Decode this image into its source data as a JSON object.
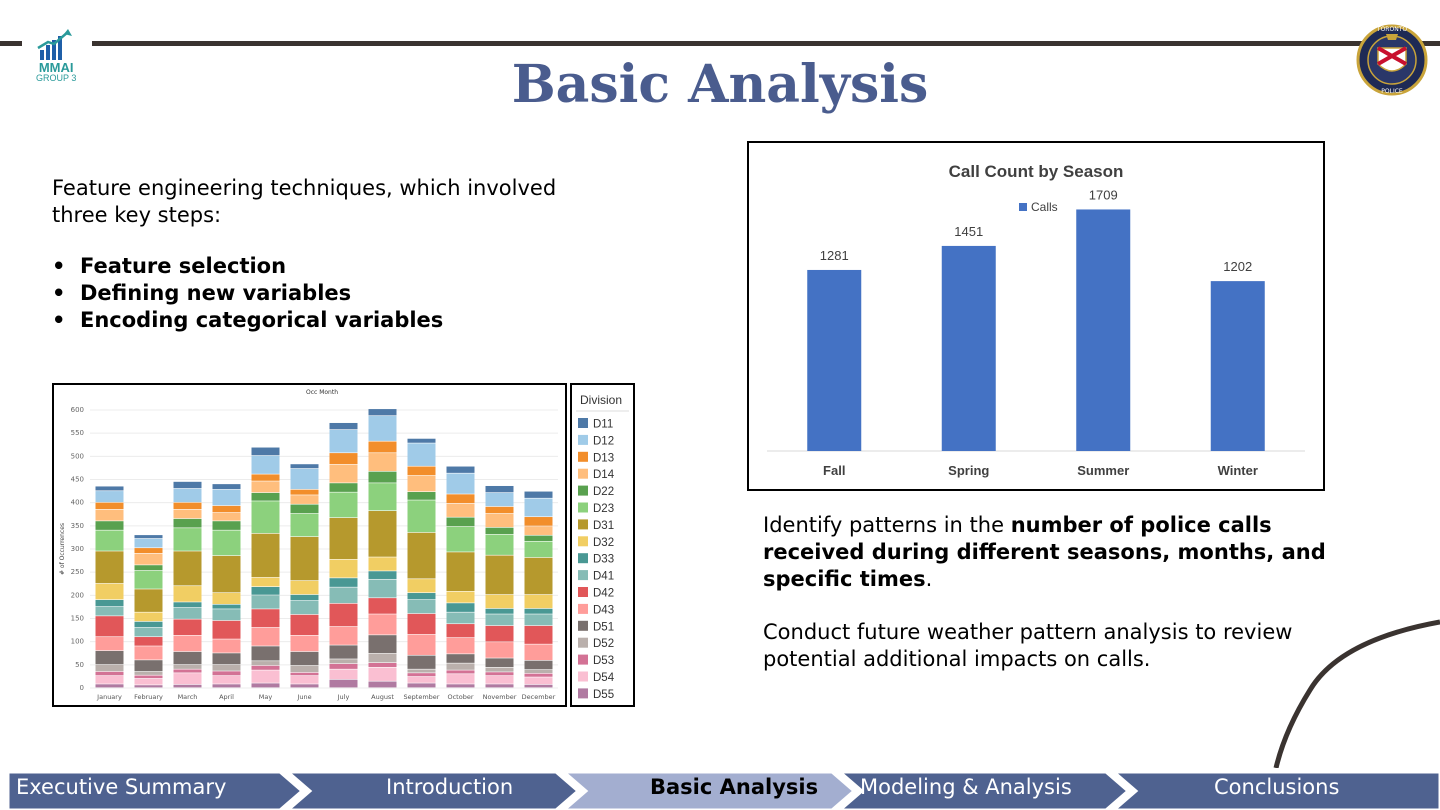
{
  "slide": {
    "title": "Basic Analysis",
    "logo_left": {
      "line1": "MMAI",
      "line2": "GROUP 3",
      "icon": "growth-chart-icon"
    },
    "logo_right": {
      "icon": "toronto-police-crest-icon",
      "line1": "TORONTO",
      "line2": "POLICE"
    }
  },
  "left": {
    "intro": "Feature engineering techniques, which involved three key steps:",
    "bullets": [
      "Feature selection",
      "Defining new variables",
      "Encoding categorical variables"
    ]
  },
  "right": {
    "para1_pre": "Identify patterns in the ",
    "para1_bold": "number of police calls received during different seasons, months, and specific times",
    "para1_post": ".",
    "para2": "Conduct future weather pattern analysis to review potential additional impacts on calls."
  },
  "nav": {
    "items": [
      "Executive Summary",
      "Introduction",
      "Basic Analysis",
      "Modeling & Analysis",
      "Conclusions"
    ],
    "active": "Basic Analysis",
    "colors": {
      "inactive": "#4f6290",
      "active": "#a3aed0"
    }
  },
  "chart_data": [
    {
      "type": "bar",
      "title": "Call Count by Season",
      "categories": [
        "Fall",
        "Spring",
        "Summer",
        "Winter"
      ],
      "series": [
        {
          "name": "Calls",
          "values": [
            1281,
            1451,
            1709,
            1202
          ]
        }
      ],
      "data_labels": true,
      "legend": "top",
      "grid": false,
      "bar_color": "#4472c4"
    },
    {
      "type": "bar",
      "stacked": true,
      "title": "Occ Month",
      "ylabel": "# of Occurrences",
      "ylim": [
        0,
        600
      ],
      "yticks": [
        0,
        50,
        100,
        150,
        200,
        250,
        300,
        350,
        400,
        450,
        500,
        550,
        600
      ],
      "grid": true,
      "legend_title": "Division",
      "legend": "right",
      "categories": [
        "January",
        "February",
        "March",
        "April",
        "May",
        "June",
        "July",
        "August",
        "September",
        "October",
        "November",
        "December"
      ],
      "series": [
        {
          "name": "D55",
          "color": "#b07aa1",
          "values": [
            8,
            6,
            7,
            8,
            10,
            8,
            18,
            14,
            10,
            8,
            8,
            7
          ]
        },
        {
          "name": "D54",
          "color": "#fabfd2",
          "values": [
            18,
            14,
            25,
            18,
            28,
            18,
            22,
            30,
            14,
            22,
            18,
            16
          ]
        },
        {
          "name": "D53",
          "color": "#d37295",
          "values": [
            9,
            7,
            8,
            10,
            10,
            7,
            12,
            10,
            8,
            8,
            8,
            8
          ]
        },
        {
          "name": "D52",
          "color": "#bab0ac",
          "values": [
            15,
            8,
            10,
            14,
            10,
            15,
            10,
            20,
            8,
            15,
            10,
            8
          ]
        },
        {
          "name": "D51",
          "color": "#79706e",
          "values": [
            30,
            25,
            28,
            25,
            32,
            30,
            30,
            40,
            30,
            20,
            20,
            20
          ]
        },
        {
          "name": "D43",
          "color": "#ff9d9a",
          "values": [
            30,
            30,
            35,
            30,
            40,
            35,
            40,
            45,
            45,
            35,
            35,
            35
          ]
        },
        {
          "name": "D42",
          "color": "#e15759",
          "values": [
            45,
            20,
            35,
            40,
            40,
            45,
            50,
            35,
            45,
            30,
            35,
            40
          ]
        },
        {
          "name": "D41",
          "color": "#86bcb6",
          "values": [
            20,
            20,
            25,
            25,
            30,
            30,
            35,
            40,
            30,
            25,
            25,
            25
          ]
        },
        {
          "name": "D33",
          "color": "#499894",
          "values": [
            15,
            13,
            12,
            10,
            18,
            13,
            20,
            18,
            15,
            20,
            12,
            12
          ]
        },
        {
          "name": "D32",
          "color": "#f1ce63",
          "values": [
            35,
            20,
            35,
            25,
            20,
            30,
            40,
            30,
            30,
            25,
            30,
            30
          ]
        },
        {
          "name": "D31",
          "color": "#b6992d",
          "values": [
            70,
            50,
            75,
            80,
            95,
            95,
            90,
            100,
            100,
            85,
            85,
            80
          ]
        },
        {
          "name": "D23",
          "color": "#8cd17d",
          "values": [
            45,
            40,
            50,
            55,
            70,
            50,
            55,
            60,
            70,
            55,
            45,
            35
          ]
        },
        {
          "name": "D22",
          "color": "#59a14f",
          "values": [
            20,
            12,
            20,
            20,
            18,
            20,
            20,
            25,
            18,
            20,
            15,
            13
          ]
        },
        {
          "name": "D14",
          "color": "#ffbe7d",
          "values": [
            25,
            25,
            20,
            18,
            25,
            20,
            40,
            40,
            35,
            30,
            30,
            20
          ]
        },
        {
          "name": "D13",
          "color": "#f28e2b",
          "values": [
            15,
            12,
            15,
            15,
            15,
            12,
            25,
            25,
            20,
            20,
            15,
            20
          ]
        },
        {
          "name": "D12",
          "color": "#a0cbe8",
          "values": [
            25,
            20,
            30,
            35,
            40,
            45,
            50,
            55,
            50,
            45,
            30,
            40
          ]
        },
        {
          "name": "D11",
          "color": "#4e79a7",
          "values": [
            10,
            8,
            15,
            12,
            18,
            10,
            15,
            15,
            10,
            15,
            15,
            15
          ]
        }
      ]
    }
  ]
}
